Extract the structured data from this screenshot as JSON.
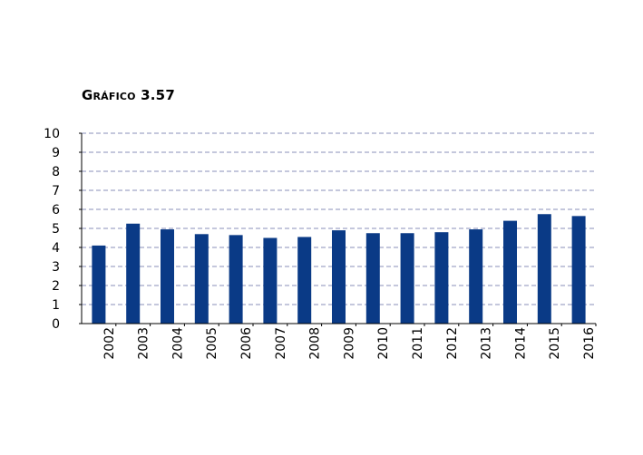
{
  "title": "Gráfico 3.57",
  "chart_data": {
    "type": "bar",
    "title": "Gráfico 3.57",
    "xlabel": "",
    "ylabel": "",
    "categories": [
      "2002",
      "2003",
      "2004",
      "2005",
      "2006",
      "2007",
      "2008",
      "2009",
      "2010",
      "2011",
      "2012",
      "2013",
      "2014",
      "2015",
      "2016"
    ],
    "values": [
      4.1,
      5.25,
      4.95,
      4.7,
      4.65,
      4.5,
      4.55,
      4.9,
      4.75,
      4.75,
      4.8,
      4.95,
      5.4,
      5.75,
      5.65
    ],
    "y_ticks": [
      "0",
      "1",
      "2",
      "3",
      "4",
      "5",
      "6",
      "7",
      "8",
      "9",
      "10"
    ],
    "ylim": [
      0,
      10
    ],
    "grid": true,
    "legend": "none",
    "colors": {
      "bar": "#0a3a86",
      "grid": "#8a8fb8",
      "axis": "#000000"
    }
  }
}
